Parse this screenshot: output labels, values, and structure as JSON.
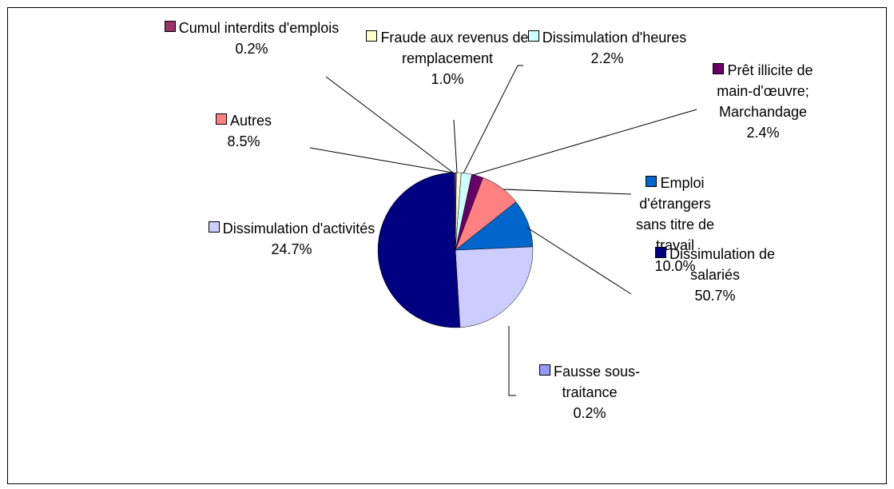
{
  "chart_data": {
    "type": "pie",
    "categories": [
      "Cumul interdits d'emplois",
      "Fraude aux revenus de remplacement",
      "Dissimulation d'heures",
      "Prêt illicite de main-d'œuvre; Marchandage",
      "Autres",
      "Emploi d'étrangers sans titre de travail",
      "Dissimulation d'activités",
      "Dissimulation de salariés",
      "Fausse sous-traitance"
    ],
    "values": [
      0.2,
      1.0,
      2.2,
      2.4,
      8.5,
      10.0,
      24.7,
      50.7,
      0.2
    ],
    "value_labels": [
      "0.2%",
      "1.0%",
      "2.2%",
      "2.4%",
      "8.5%",
      "10.0%",
      "24.7%",
      "50.7%",
      "0.2%"
    ],
    "colors": [
      "#993366",
      "#ffffcc",
      "#ccffff",
      "#660066",
      "#ff8080",
      "#0066cc",
      "#ccccff",
      "#000080",
      "#9999ff"
    ]
  }
}
